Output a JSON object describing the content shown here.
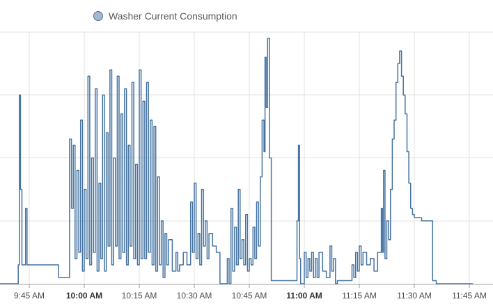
{
  "chart_data": {
    "type": "line",
    "title": "",
    "xlabel": "",
    "ylabel": "",
    "series": [
      {
        "name": "Washer Current Consumption",
        "color": "#4472a0",
        "points": [
          [
            "9:33",
            0
          ],
          [
            "9:41",
            0
          ],
          [
            "9:42",
            0.3
          ],
          [
            "9:42.3",
            3.0
          ],
          [
            "9:42.6",
            1.5
          ],
          [
            "9:43",
            0.3
          ],
          [
            "9:44",
            1.2
          ],
          [
            "9:44.4",
            0.3
          ],
          [
            "9:45",
            0.3
          ],
          [
            "9:52",
            0.3
          ],
          [
            "9:53",
            0.1
          ],
          [
            "9:55",
            0.1
          ],
          [
            "9:56",
            2.3
          ],
          [
            "9:56.5",
            1.2
          ],
          [
            "9:57",
            2.2
          ],
          [
            "9:57.5",
            0.4
          ],
          [
            "9:58",
            1.8
          ],
          [
            "9:58.5",
            0.5
          ],
          [
            "9:59",
            2.6
          ],
          [
            "9:59.5",
            0.2
          ],
          [
            "10:00",
            1.5
          ],
          [
            "10:00.5",
            0.4
          ],
          [
            "10:01",
            3.3
          ],
          [
            "10:01.5",
            0.3
          ],
          [
            "10:02",
            2.0
          ],
          [
            "10:02.5",
            0.5
          ],
          [
            "10:03",
            3.1
          ],
          [
            "10:03.5",
            0.2
          ],
          [
            "10:04",
            1.6
          ],
          [
            "10:04.5",
            0.4
          ],
          [
            "10:05",
            3.0
          ],
          [
            "10:05.5",
            0.2
          ],
          [
            "10:06",
            2.4
          ],
          [
            "10:06.5",
            0.6
          ],
          [
            "10:07",
            3.4
          ],
          [
            "10:07.5",
            0.3
          ],
          [
            "10:08",
            2.0
          ],
          [
            "10:08.5",
            0.6
          ],
          [
            "10:09",
            3.3
          ],
          [
            "10:09.5",
            0.4
          ],
          [
            "10:10",
            2.7
          ],
          [
            "10:10.5",
            0.5
          ],
          [
            "10:11",
            3.1
          ],
          [
            "10:11.5",
            0.3
          ],
          [
            "10:12",
            2.2
          ],
          [
            "10:12.5",
            0.6
          ],
          [
            "10:13",
            3.2
          ],
          [
            "10:13.5",
            0.4
          ],
          [
            "10:14",
            1.9
          ],
          [
            "10:14.5",
            0.3
          ],
          [
            "10:15",
            3.4
          ],
          [
            "10:15.5",
            0.4
          ],
          [
            "10:16",
            2.9
          ],
          [
            "10:16.5",
            0.4
          ],
          [
            "10:17",
            3.2
          ],
          [
            "10:17.5",
            0.5
          ],
          [
            "10:18",
            2.6
          ],
          [
            "10:18.5",
            0.3
          ],
          [
            "10:19",
            2.5
          ],
          [
            "10:19.5",
            0.2
          ],
          [
            "10:20",
            1.7
          ],
          [
            "10:20.5",
            0.3
          ],
          [
            "10:21",
            1.0
          ],
          [
            "10:21.5",
            0.1
          ],
          [
            "10:22",
            0.8
          ],
          [
            "10:22.5",
            0.3
          ],
          [
            "10:23",
            0.7
          ],
          [
            "10:24",
            0.2
          ],
          [
            "10:25",
            0.5
          ],
          [
            "10:25.5",
            0.2
          ],
          [
            "10:26",
            0.3
          ],
          [
            "10:27",
            0.5
          ],
          [
            "10:28",
            0.3
          ],
          [
            "10:29",
            1.3
          ],
          [
            "10:29.5",
            0.5
          ],
          [
            "10:30",
            1.6
          ],
          [
            "10:30.5",
            0.4
          ],
          [
            "10:31",
            0.8
          ],
          [
            "10:31.5",
            0.3
          ],
          [
            "10:32",
            1.5
          ],
          [
            "10:32.5",
            0.6
          ],
          [
            "10:33",
            1.0
          ],
          [
            "10:33.5",
            0.4
          ],
          [
            "10:34",
            0.8
          ],
          [
            "10:35",
            0.6
          ],
          [
            "10:36",
            0.5
          ],
          [
            "10:37",
            0.0
          ],
          [
            "10:38",
            0.0
          ],
          [
            "10:39",
            0.4
          ],
          [
            "10:39.5",
            0.0
          ],
          [
            "10:40",
            1.2
          ],
          [
            "10:40.5",
            0.2
          ],
          [
            "10:41",
            0.9
          ],
          [
            "10:41.5",
            0.3
          ],
          [
            "10:42",
            1.5
          ],
          [
            "10:42.5",
            0.4
          ],
          [
            "10:43",
            0.7
          ],
          [
            "10:43.5",
            0.3
          ],
          [
            "10:44",
            1.1
          ],
          [
            "10:44.5",
            0.2
          ],
          [
            "10:45",
            0.4
          ],
          [
            "10:45.5",
            0.3
          ],
          [
            "10:46",
            0.9
          ],
          [
            "10:46.5",
            0.4
          ],
          [
            "10:47",
            1.3
          ],
          [
            "10:47.5",
            0.6
          ],
          [
            "10:48",
            1.7
          ],
          [
            "10:48.5",
            2.6
          ],
          [
            "10:49",
            2.1
          ],
          [
            "10:49.3",
            3.6
          ],
          [
            "10:49.6",
            2.8
          ],
          [
            "10:50",
            3.9
          ],
          [
            "10:50.5",
            2.0
          ],
          [
            "10:51",
            0.05
          ],
          [
            "10:52",
            0.05
          ],
          [
            "10:56",
            0.05
          ],
          [
            "10:57",
            0.05
          ],
          [
            "10:58",
            1.0
          ],
          [
            "10:58.4",
            2.2
          ],
          [
            "10:58.7",
            0.4
          ],
          [
            "10:59",
            0.0
          ],
          [
            "10:59.5",
            0.0
          ],
          [
            "11:00",
            0.5
          ],
          [
            "11:00.5",
            0.1
          ],
          [
            "11:01",
            0.4
          ],
          [
            "11:01.5",
            0.2
          ],
          [
            "11:02",
            0.5
          ],
          [
            "11:02.5",
            0.1
          ],
          [
            "11:03",
            0.4
          ],
          [
            "11:03.5",
            0.1
          ],
          [
            "11:04",
            0.5
          ],
          [
            "11:05",
            0.2
          ],
          [
            "11:06",
            0.1
          ],
          [
            "11:07",
            0.6
          ],
          [
            "11:07.5",
            0.2
          ],
          [
            "11:08",
            0.4
          ],
          [
            "11:08.5",
            0.0
          ],
          [
            "11:09",
            0.05
          ],
          [
            "11:10",
            0.05
          ],
          [
            "11:11",
            0.05
          ],
          [
            "11:12",
            0.05
          ],
          [
            "11:13",
            0.3
          ],
          [
            "11:13.5",
            0.1
          ],
          [
            "11:14",
            0.5
          ],
          [
            "11:14.5",
            0.2
          ],
          [
            "11:15",
            0.6
          ],
          [
            "11:15.5",
            0.3
          ],
          [
            "11:16",
            0.5
          ],
          [
            "11:17",
            0.3
          ],
          [
            "11:18",
            0.4
          ],
          [
            "11:19",
            0.2
          ],
          [
            "11:20",
            0.5
          ],
          [
            "11:21",
            1.2
          ],
          [
            "11:21.3",
            0.5
          ],
          [
            "11:21.6",
            1.8
          ],
          [
            "11:22",
            0.4
          ],
          [
            "11:22.5",
            1.0
          ],
          [
            "11:23",
            0.7
          ],
          [
            "11:23.5",
            1.5
          ],
          [
            "11:24",
            2.3
          ],
          [
            "11:24.5",
            2.6
          ],
          [
            "11:25",
            3.2
          ],
          [
            "11:25.5",
            3.5
          ],
          [
            "11:26",
            3.7
          ],
          [
            "11:26.5",
            3.3
          ],
          [
            "11:27",
            3.0
          ],
          [
            "11:27.5",
            2.7
          ],
          [
            "11:28",
            2.1
          ],
          [
            "11:28.5",
            1.6
          ],
          [
            "11:29",
            1.2
          ],
          [
            "11:29.5",
            1.1
          ],
          [
            "11:30",
            1.05
          ],
          [
            "11:31",
            1.05
          ],
          [
            "11:32",
            1.0
          ],
          [
            "11:33",
            1.0
          ],
          [
            "11:34",
            1.0
          ],
          [
            "11:35",
            0.05
          ],
          [
            "11:36",
            0.0
          ],
          [
            "11:40",
            0.0
          ],
          [
            "11:46",
            0.0
          ]
        ]
      }
    ],
    "x_ticks": [
      {
        "label": "9:45 AM",
        "bold": false
      },
      {
        "label": "10:00 AM",
        "bold": true
      },
      {
        "label": "10:15 AM",
        "bold": false
      },
      {
        "label": "10:30 AM",
        "bold": false
      },
      {
        "label": "10:45 AM",
        "bold": false
      },
      {
        "label": "11:00 AM",
        "bold": true
      },
      {
        "label": "11:15 AM",
        "bold": false
      },
      {
        "label": "11:30 AM",
        "bold": false
      },
      {
        "label": "11:45 AM",
        "bold": false
      }
    ],
    "ylim": [
      0,
      4
    ],
    "grid": true,
    "legend_position": "top-center",
    "colors": {
      "line": "#4472a0",
      "grid": "#e0e0e0",
      "axis": "#9a9a9a",
      "legend_fill": "#a5b8cf",
      "legend_stroke": "#4b6f93"
    }
  }
}
